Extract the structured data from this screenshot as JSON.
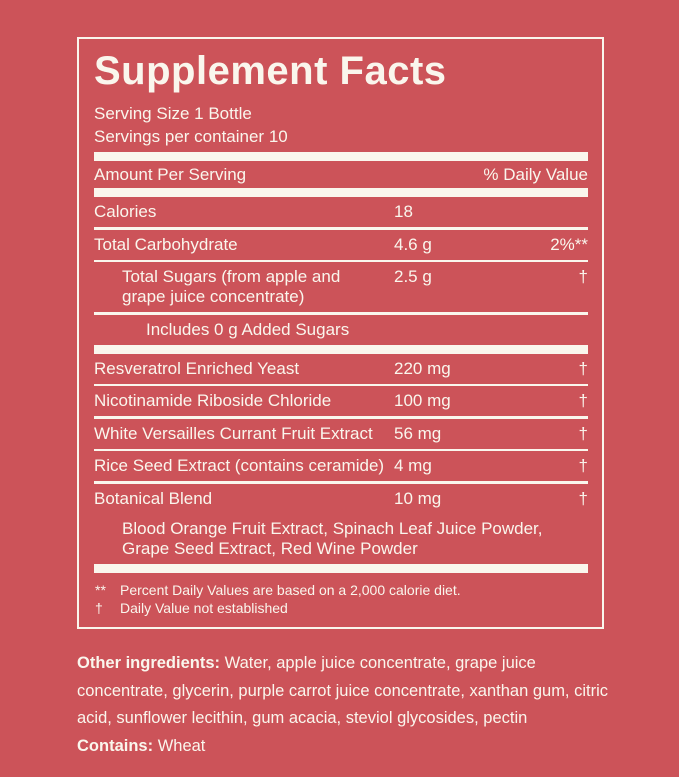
{
  "colors": {
    "background": "#cc5359",
    "ink": "#faf6ed"
  },
  "panel": {
    "title": "Supplement Facts",
    "serving_size": "Serving Size 1 Bottle",
    "servings_per_container": "Servings per container 10",
    "header_left": "Amount Per Serving",
    "header_right": "% Daily Value"
  },
  "rows": [
    {
      "name": "Calories",
      "amount": "18",
      "dv": ""
    },
    {
      "name": "Total Carbohydrate",
      "amount": "4.6 g",
      "dv": "2%**"
    },
    {
      "name": "Total Sugars (from apple and grape juice concentrate)",
      "amount": "2.5 g",
      "dv": "†"
    },
    {
      "name": "Includes 0 g Added Sugars",
      "amount": "",
      "dv": ""
    },
    {
      "name": "Resveratrol Enriched Yeast",
      "amount": "220 mg",
      "dv": "†"
    },
    {
      "name": "Nicotinamide Riboside Chloride",
      "amount": "100 mg",
      "dv": "†"
    },
    {
      "name": "White Versailles Currant Fruit Extract",
      "amount": "56 mg",
      "dv": "†"
    },
    {
      "name": "Rice Seed Extract (contains ceramide)",
      "amount": "4 mg",
      "dv": "†"
    },
    {
      "name": "Botanical Blend",
      "amount": "10 mg",
      "dv": "†"
    },
    {
      "name": "Blood Orange Fruit Extract, Spinach Leaf Juice Powder, Grape Seed Extract, Red Wine Powder",
      "amount": "",
      "dv": ""
    }
  ],
  "footnotes": [
    {
      "symbol": "**",
      "text": "Percent Daily Values are based on a 2,000 calorie diet."
    },
    {
      "symbol": "†",
      "text": "Daily Value not established"
    }
  ],
  "other_ingredients": {
    "label": "Other ingredients:",
    "text": "Water, apple juice concentrate, grape juice concentrate, glycerin, purple carrot juice concentrate, xanthan gum, citric acid, sunflower lecithin, gum acacia, steviol glycosides, pectin"
  },
  "contains": {
    "label": "Contains:",
    "text": "Wheat"
  }
}
